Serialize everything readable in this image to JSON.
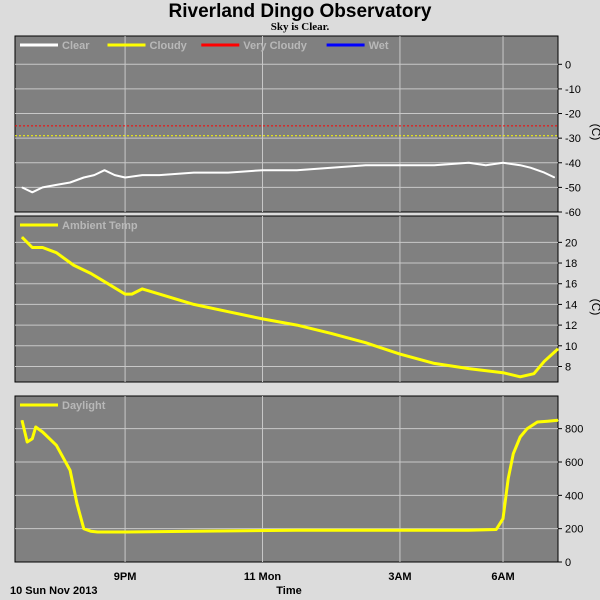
{
  "title": "Riverland Dingo Observatory",
  "subtitle": "Sky is Clear.",
  "footer": {
    "date_label": "10 Sun Nov 2013",
    "x_axis_label": "Time"
  },
  "colors": {
    "panel_bg": "#808080",
    "grid": "#c8c8c8",
    "clear": "#ffffff",
    "cloudy": "#ffff00",
    "very_cloudy": "#ff0000",
    "wet": "#0000ff",
    "temp": "#ffff00",
    "daylight": "#ffff00"
  },
  "x_ticks": [
    "9PM",
    "11 Mon",
    "3AM",
    "6AM"
  ],
  "chart_data": [
    {
      "type": "line",
      "name": "cloud",
      "legend": [
        "Clear",
        "Cloudy",
        "Very Cloudy",
        "Wet"
      ],
      "unit": "(C)",
      "ylim": [
        -60,
        5
      ],
      "yticks": [
        0,
        -10,
        -20,
        -30,
        -40,
        -50,
        -60
      ],
      "thresholds": [
        {
          "name": "Very Cloudy",
          "y": -25
        },
        {
          "name": "Cloudy",
          "y": -29
        }
      ],
      "x_hours": [
        0,
        0.3,
        0.6,
        1.0,
        1.4,
        1.8,
        2.1,
        2.4,
        2.7,
        3.0,
        3.5,
        4.0,
        5.0,
        6.0,
        7.0,
        8.0,
        9.0,
        10.0,
        11.0,
        12.0,
        13.0,
        13.5,
        14.0,
        14.5,
        14.8,
        15.2,
        15.5
      ],
      "values": [
        -50,
        -52,
        -50,
        -49,
        -48,
        -46,
        -45,
        -43,
        -45,
        -46,
        -45,
        -45,
        -44,
        -44,
        -43,
        -43,
        -42,
        -41,
        -41,
        -41,
        -40,
        -41,
        -40,
        -41,
        -42,
        -44,
        -46
      ]
    },
    {
      "type": "line",
      "name": "Ambient Temp",
      "legend": [
        "Ambient Temp"
      ],
      "unit": "(C)",
      "ylim": [
        6.5,
        21
      ],
      "yticks": [
        20,
        18,
        16,
        14,
        12,
        10,
        8
      ],
      "x_hours": [
        0,
        0.3,
        0.6,
        1.0,
        1.5,
        2.0,
        2.5,
        3.0,
        3.2,
        3.5,
        4.0,
        5.0,
        6.0,
        7.0,
        8.0,
        9.0,
        10.0,
        11.0,
        12.0,
        13.0,
        14.0,
        14.5,
        14.9,
        15.2,
        15.6
      ],
      "values": [
        20.5,
        19.5,
        19.5,
        19.0,
        17.8,
        17.0,
        16.0,
        15.0,
        15.0,
        15.5,
        15.0,
        14.0,
        13.3,
        12.6,
        12.0,
        11.2,
        10.3,
        9.2,
        8.3,
        7.8,
        7.4,
        7.0,
        7.3,
        8.5,
        9.7
      ]
    },
    {
      "type": "line",
      "name": "Daylight",
      "legend": [
        "Daylight"
      ],
      "unit": "",
      "ylim": [
        0,
        900
      ],
      "yticks": [
        800,
        600,
        400,
        200,
        0
      ],
      "x_hours": [
        0,
        0.15,
        0.3,
        0.4,
        0.6,
        1.0,
        1.4,
        1.6,
        1.8,
        2.0,
        2.2,
        3.0,
        5.0,
        8.0,
        11.0,
        13.0,
        13.8,
        14.0,
        14.15,
        14.3,
        14.5,
        14.7,
        15.0,
        15.3,
        15.6
      ],
      "values": [
        850,
        720,
        740,
        810,
        780,
        700,
        550,
        350,
        200,
        185,
        180,
        180,
        185,
        190,
        190,
        190,
        195,
        260,
        500,
        650,
        750,
        800,
        840,
        845,
        850
      ]
    }
  ]
}
